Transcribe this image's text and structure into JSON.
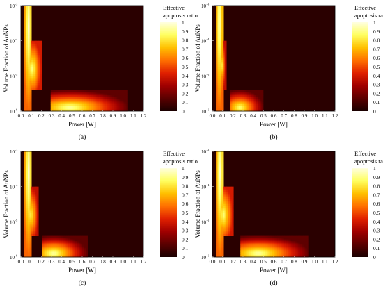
{
  "colors": {
    "colormap": [
      "#1a0000",
      "#5a0000",
      "#a00000",
      "#e02000",
      "#ff7000",
      "#ffc000",
      "#ffff60",
      "#ffffe0"
    ],
    "background": "#2a0000"
  },
  "chart_data": [
    {
      "type": "heatmap",
      "panel_label": "(a)",
      "xlabel": "Power [W]",
      "ylabel": "Volume Fraction of AuNPs",
      "xlim": [
        0.0,
        1.2
      ],
      "ylim_log10": [
        -6,
        -3
      ],
      "xticks": [
        "0.0",
        "0.1",
        "0.2",
        "0.3",
        "0.4",
        "0.5",
        "0.6",
        "0.7",
        "0.8",
        "0.9",
        "1.0",
        "1.1",
        "1.2"
      ],
      "yticks": [
        "10",
        "10",
        "10",
        "10"
      ],
      "ytick_exponents": [
        "-6",
        "-5",
        "-4",
        "-3"
      ],
      "colorbar": {
        "title_line1": "Effective",
        "title_line2": "apoptosis ratio",
        "ticks": [
          "1",
          "0.9",
          "0.8",
          "0.7",
          "0.6",
          "0.5",
          "0.4",
          "0.3",
          "0.2",
          "0.1",
          "0"
        ],
        "range": [
          0,
          1
        ]
      },
      "regions": [
        {
          "power_range": [
            0.03,
            0.11
          ],
          "log_vf_range": [
            -3.0,
            -6.0
          ],
          "value_peak": 1.0,
          "value_low": 0.55,
          "center_power": 0.075,
          "center_log_vf": -3.6
        },
        {
          "power_range": [
            0.07,
            0.2
          ],
          "log_vf_range": [
            -4.0,
            -5.4
          ],
          "value_peak": 0.9,
          "value_low": 0.4,
          "center_power": 0.11,
          "center_log_vf": -4.8
        },
        {
          "power_range": [
            0.3,
            1.05
          ],
          "log_vf_range": [
            -5.4,
            -6.0
          ],
          "value_peak": 0.95,
          "value_low": 0.15,
          "center_power": 0.48,
          "center_log_vf": -5.9
        }
      ]
    },
    {
      "type": "heatmap",
      "panel_label": "(b)",
      "xlabel": "Power [W]",
      "ylabel": "Volume Fraction of AuNPs",
      "xlim": [
        0.0,
        1.2
      ],
      "ylim_log10": [
        -6,
        -3
      ],
      "xticks": [
        "0.0",
        "0.1",
        "0.2",
        "0.3",
        "0.4",
        "0.5",
        "0.6",
        "0.7",
        "0.8",
        "0.9",
        "1.0",
        "1.1",
        "1.2"
      ],
      "yticks": [
        "10",
        "10",
        "10",
        "10"
      ],
      "ytick_exponents": [
        "-6",
        "-5",
        "-4",
        "-3"
      ],
      "colorbar": {
        "title_line1": "Effective",
        "title_line2": "apoptosis ratio",
        "ticks": [
          "1",
          "0.9",
          "0.8",
          "0.7",
          "0.6",
          "0.5",
          "0.4",
          "0.3",
          "0.2",
          "0.1",
          "0"
        ],
        "range": [
          0,
          1
        ]
      },
      "regions": [
        {
          "power_range": [
            0.03,
            0.1
          ],
          "log_vf_range": [
            -3.0,
            -6.0
          ],
          "value_peak": 1.0,
          "value_low": 0.55,
          "center_power": 0.07,
          "center_log_vf": -3.5
        },
        {
          "power_range": [
            0.05,
            0.13
          ],
          "log_vf_range": [
            -4.0,
            -5.4
          ],
          "value_peak": 0.85,
          "value_low": 0.35,
          "center_power": 0.09,
          "center_log_vf": -4.7
        },
        {
          "power_range": [
            0.18,
            0.5
          ],
          "log_vf_range": [
            -5.4,
            -6.0
          ],
          "value_peak": 0.9,
          "value_low": 0.15,
          "center_power": 0.27,
          "center_log_vf": -5.9
        }
      ]
    },
    {
      "type": "heatmap",
      "panel_label": "(c)",
      "xlabel": "Power [W]",
      "ylabel": "Volume Fraction of AuNPs",
      "xlim": [
        0.0,
        1.2
      ],
      "ylim_log10": [
        -6,
        -3
      ],
      "xticks": [
        "0.0",
        "0.1",
        "0.2",
        "0.3",
        "0.4",
        "0.5",
        "0.6",
        "0.7",
        "0.8",
        "0.9",
        "1.0",
        "1.1",
        "1.2"
      ],
      "yticks": [
        "10",
        "10",
        "10",
        "10"
      ],
      "ytick_exponents": [
        "-6",
        "-5",
        "-4",
        "-3"
      ],
      "colorbar": {
        "title_line1": "Effective",
        "title_line2": "apoptosis ratio",
        "ticks": [
          "1",
          "0.9",
          "0.8",
          "0.7",
          "0.6",
          "0.5",
          "0.4",
          "0.3",
          "0.2",
          "0.1",
          "0"
        ],
        "range": [
          0,
          1
        ]
      },
      "regions": [
        {
          "power_range": [
            0.03,
            0.11
          ],
          "log_vf_range": [
            -3.0,
            -6.0
          ],
          "value_peak": 1.0,
          "value_low": 0.55,
          "center_power": 0.075,
          "center_log_vf": -3.6
        },
        {
          "power_range": [
            0.06,
            0.17
          ],
          "log_vf_range": [
            -4.0,
            -5.4
          ],
          "value_peak": 0.85,
          "value_low": 0.35,
          "center_power": 0.1,
          "center_log_vf": -4.8
        },
        {
          "power_range": [
            0.2,
            0.65
          ],
          "log_vf_range": [
            -5.4,
            -6.0
          ],
          "value_peak": 0.95,
          "value_low": 0.15,
          "center_power": 0.32,
          "center_log_vf": -5.9
        }
      ]
    },
    {
      "type": "heatmap",
      "panel_label": "(d)",
      "xlabel": "Power [W]",
      "ylabel": "Volume Fraction of AuNPs",
      "xlim": [
        0.0,
        1.2
      ],
      "ylim_log10": [
        -6,
        -3
      ],
      "xticks": [
        "0.0",
        "0.1",
        "0.2",
        "0.3",
        "0.4",
        "0.5",
        "0.6",
        "0.7",
        "0.8",
        "0.9",
        "1.0",
        "1.1",
        "1.2"
      ],
      "yticks": [
        "10",
        "10",
        "10",
        "10"
      ],
      "ytick_exponents": [
        "-6",
        "-5",
        "-4",
        "-3"
      ],
      "colorbar": {
        "title_line1": "Effective",
        "title_line2": "apoptosis ratio",
        "ticks": [
          "1",
          "0.9",
          "0.8",
          "0.7",
          "0.6",
          "0.5",
          "0.4",
          "0.3",
          "0.2",
          "0.1",
          "0"
        ],
        "range": [
          0,
          1
        ]
      },
      "regions": [
        {
          "power_range": [
            0.03,
            0.11
          ],
          "log_vf_range": [
            -3.0,
            -6.0
          ],
          "value_peak": 1.0,
          "value_low": 0.55,
          "center_power": 0.075,
          "center_log_vf": -3.6
        },
        {
          "power_range": [
            0.07,
            0.2
          ],
          "log_vf_range": [
            -4.0,
            -5.4
          ],
          "value_peak": 0.9,
          "value_low": 0.4,
          "center_power": 0.11,
          "center_log_vf": -4.8
        },
        {
          "power_range": [
            0.28,
            0.95
          ],
          "log_vf_range": [
            -5.4,
            -6.0
          ],
          "value_peak": 0.95,
          "value_low": 0.15,
          "center_power": 0.45,
          "center_log_vf": -5.9
        }
      ]
    }
  ]
}
